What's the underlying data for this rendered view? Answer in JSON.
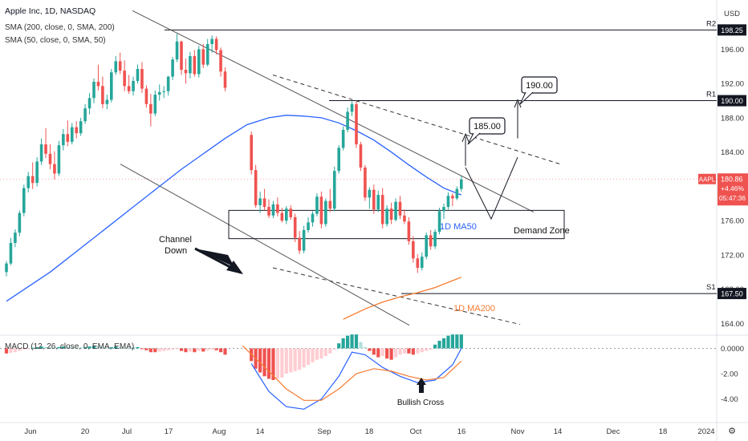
{
  "header": {
    "title": "Apple Inc, 1D, NASDAQ",
    "ind1": "SMA (200, close, 0, SMA, 200)",
    "ind2": "SMA (50, close, 0, SMA, 50)",
    "currency": "USD"
  },
  "chart_data": {
    "type": "candlestick",
    "symbol": "AAPL",
    "price_axis": {
      "range": [
        162.5,
        200.5
      ],
      "ticks": [
        164,
        168,
        172,
        176,
        180,
        184,
        188,
        192,
        196
      ],
      "tick_labels": [
        "164.00",
        "168.00",
        "172.00",
        "176.00",
        "180.00",
        "184.00",
        "188.00",
        "192.00",
        "196.00"
      ]
    },
    "time_axis": {
      "day_range": [
        0,
        140
      ],
      "labels": [
        {
          "day": 3,
          "text": "Jun"
        },
        {
          "day": 19,
          "text": "20"
        },
        {
          "day": 29,
          "text": "Jul"
        },
        {
          "day": 47,
          "text": "17"
        },
        {
          "day": 61,
          "text": "Aug"
        },
        {
          "day": 74,
          "text": "14"
        },
        {
          "day": 92,
          "text": "Sep"
        },
        {
          "day": 106,
          "text": "18"
        },
        {
          "day": 120,
          "text": "Oct"
        },
        {
          "day": 134,
          "text": "16"
        }
      ]
    },
    "candles": [
      [
        0,
        170.0,
        171.3,
        169.5,
        171.0
      ],
      [
        1,
        171.0,
        174.0,
        170.8,
        173.4
      ],
      [
        2,
        173.4,
        175.0,
        172.9,
        174.6
      ],
      [
        3,
        174.6,
        177.2,
        174.2,
        176.9
      ],
      [
        4,
        176.9,
        180.2,
        176.5,
        179.8
      ],
      [
        5,
        179.8,
        181.7,
        179.3,
        181.2
      ],
      [
        6,
        181.2,
        182.8,
        179.7,
        180.4
      ],
      [
        7,
        180.4,
        183.4,
        180.0,
        182.9
      ],
      [
        8,
        182.9,
        185.6,
        182.5,
        184.9
      ],
      [
        9,
        184.9,
        186.8,
        183.3,
        183.8
      ],
      [
        10,
        183.8,
        184.9,
        182.0,
        182.6
      ],
      [
        11,
        182.6,
        184.1,
        180.8,
        181.5
      ],
      [
        12,
        181.5,
        185.3,
        181.2,
        184.8
      ],
      [
        13,
        184.8,
        186.7,
        184.2,
        186.1
      ],
      [
        14,
        186.1,
        187.7,
        184.7,
        185.2
      ],
      [
        15,
        185.2,
        187.4,
        184.9,
        186.9
      ],
      [
        16,
        186.9,
        187.6,
        185.6,
        186.2
      ],
      [
        17,
        186.2,
        188.0,
        185.9,
        187.6
      ],
      [
        18,
        187.6,
        189.6,
        187.3,
        189.1
      ],
      [
        19,
        189.1,
        190.9,
        188.4,
        190.3
      ],
      [
        20,
        190.3,
        192.6,
        189.7,
        192.2
      ],
      [
        21,
        192.2,
        194.2,
        191.2,
        191.7
      ],
      [
        22,
        191.7,
        192.8,
        189.1,
        189.6
      ],
      [
        23,
        189.6,
        190.7,
        189.0,
        190.1
      ],
      [
        24,
        190.1,
        193.7,
        189.8,
        193.3
      ],
      [
        25,
        193.3,
        195.2,
        193.0,
        194.6
      ],
      [
        26,
        194.6,
        195.6,
        193.1,
        193.5
      ],
      [
        27,
        193.5,
        194.7,
        191.1,
        191.7
      ],
      [
        28,
        191.7,
        193.0,
        190.8,
        191.1
      ],
      [
        29,
        191.1,
        192.8,
        190.6,
        192.3
      ],
      [
        30,
        192.3,
        194.2,
        192.0,
        193.7
      ],
      [
        31,
        193.7,
        194.5,
        190.9,
        191.4
      ],
      [
        32,
        191.4,
        191.8,
        189.2,
        189.6
      ],
      [
        33,
        189.6,
        190.8,
        187.0,
        188.5
      ],
      [
        34,
        188.5,
        191.2,
        188.2,
        190.7
      ],
      [
        35,
        190.7,
        191.9,
        190.0,
        191.0
      ],
      [
        36,
        191.0,
        191.7,
        190.3,
        191.1
      ],
      [
        37,
        191.1,
        192.9,
        190.6,
        192.8
      ],
      [
        38,
        192.8,
        195.1,
        192.4,
        194.8
      ],
      [
        39,
        194.8,
        197.8,
        194.5,
        196.9
      ],
      [
        40,
        196.9,
        197.0,
        193.0,
        193.6
      ],
      [
        41,
        193.6,
        194.9,
        192.0,
        193.2
      ],
      [
        42,
        193.2,
        195.7,
        192.6,
        195.2
      ],
      [
        43,
        195.2,
        195.9,
        192.8,
        193.1
      ],
      [
        44,
        193.1,
        196.4,
        192.7,
        196.0
      ],
      [
        45,
        196.0,
        196.6,
        193.8,
        194.2
      ],
      [
        46,
        194.2,
        197.2,
        194.0,
        196.6
      ],
      [
        47,
        196.6,
        197.6,
        195.6,
        197.2
      ],
      [
        48,
        197.2,
        197.5,
        195.4,
        195.9
      ],
      [
        49,
        195.9,
        196.2,
        192.8,
        193.4
      ],
      [
        50,
        193.4,
        193.9,
        191.1,
        191.5
      ],
      [
        56,
        186.0,
        186.4,
        181.4,
        181.9
      ],
      [
        57,
        181.9,
        182.5,
        177.5,
        177.8
      ],
      [
        58,
        177.8,
        179.4,
        176.9,
        178.6
      ],
      [
        59,
        178.6,
        179.7,
        177.2,
        177.6
      ],
      [
        60,
        177.6,
        178.5,
        176.3,
        176.6
      ],
      [
        61,
        176.6,
        178.3,
        176.3,
        177.9
      ],
      [
        62,
        177.9,
        178.7,
        176.5,
        176.9
      ],
      [
        63,
        176.9,
        177.5,
        175.8,
        176.0
      ],
      [
        64,
        176.0,
        177.7,
        175.6,
        177.4
      ],
      [
        65,
        177.4,
        177.8,
        176.1,
        176.4
      ],
      [
        66,
        176.4,
        176.8,
        173.5,
        174.0
      ],
      [
        67,
        174.0,
        174.8,
        172.1,
        172.5
      ],
      [
        68,
        172.5,
        175.4,
        172.2,
        174.9
      ],
      [
        69,
        174.9,
        176.4,
        174.6,
        175.8
      ],
      [
        70,
        175.8,
        177.1,
        175.3,
        176.8
      ],
      [
        71,
        176.8,
        179.2,
        176.5,
        178.8
      ],
      [
        72,
        178.8,
        179.4,
        175.1,
        175.6
      ],
      [
        73,
        175.6,
        178.6,
        175.3,
        178.3
      ],
      [
        74,
        178.3,
        179.7,
        177.0,
        177.4
      ],
      [
        75,
        177.4,
        182.3,
        177.1,
        181.8
      ],
      [
        76,
        181.8,
        184.8,
        181.5,
        184.5
      ],
      [
        77,
        184.5,
        187.0,
        184.2,
        186.6
      ],
      [
        78,
        186.6,
        189.2,
        186.3,
        188.7
      ],
      [
        79,
        188.7,
        189.9,
        188.2,
        189.6
      ],
      [
        80,
        189.6,
        189.9,
        184.5,
        184.9
      ],
      [
        81,
        184.9,
        185.2,
        181.8,
        182.2
      ],
      [
        82,
        182.2,
        182.5,
        178.3,
        178.7
      ],
      [
        83,
        178.7,
        179.9,
        177.4,
        179.6
      ],
      [
        84,
        179.6,
        180.2,
        176.8,
        177.3
      ],
      [
        85,
        177.3,
        179.5,
        177.0,
        179.0
      ],
      [
        86,
        179.0,
        179.8,
        175.1,
        175.6
      ],
      [
        87,
        175.6,
        177.8,
        175.3,
        177.4
      ],
      [
        88,
        177.4,
        178.1,
        175.6,
        176.1
      ],
      [
        89,
        176.1,
        178.6,
        175.9,
        178.2
      ],
      [
        90,
        178.2,
        178.9,
        176.2,
        176.6
      ],
      [
        91,
        176.6,
        177.3,
        175.6,
        175.9
      ],
      [
        92,
        175.9,
        176.4,
        173.2,
        173.6
      ],
      [
        93,
        173.6,
        174.2,
        171.1,
        171.6
      ],
      [
        94,
        171.6,
        172.1,
        169.9,
        170.5
      ],
      [
        95,
        170.5,
        172.3,
        170.2,
        171.8
      ],
      [
        96,
        171.8,
        174.6,
        171.5,
        174.3
      ],
      [
        97,
        174.3,
        174.9,
        172.6,
        173.0
      ],
      [
        98,
        173.0,
        175.0,
        172.7,
        174.7
      ],
      [
        99,
        174.7,
        177.5,
        174.4,
        177.1
      ],
      [
        100,
        177.1,
        178.0,
        176.2,
        177.6
      ],
      [
        101,
        177.6,
        179.3,
        177.3,
        178.9
      ],
      [
        102,
        178.9,
        179.2,
        177.7,
        178.6
      ],
      [
        103,
        178.6,
        180.0,
        178.4,
        179.7
      ],
      [
        104,
        179.7,
        181.2,
        179.4,
        180.8
      ]
    ],
    "sma50": [
      [
        0,
        166.6
      ],
      [
        10,
        170.0
      ],
      [
        20,
        174.0
      ],
      [
        30,
        178.0
      ],
      [
        40,
        182.0
      ],
      [
        50,
        185.6
      ],
      [
        55,
        187.2
      ],
      [
        60,
        188.0
      ],
      [
        64,
        188.3
      ],
      [
        68,
        188.2
      ],
      [
        72,
        188.0
      ],
      [
        76,
        187.4
      ],
      [
        80,
        186.5
      ],
      [
        84,
        185.4
      ],
      [
        88,
        184.0
      ],
      [
        92,
        182.5
      ],
      [
        96,
        181.1
      ],
      [
        100,
        179.8
      ],
      [
        104,
        179.0
      ]
    ],
    "sma200": [
      [
        77,
        164.5
      ],
      [
        82,
        165.7
      ],
      [
        86,
        166.5
      ],
      [
        90,
        167.1
      ],
      [
        94,
        167.6
      ],
      [
        98,
        168.2
      ],
      [
        102,
        169.0
      ],
      [
        104,
        169.4
      ]
    ],
    "macd_axis": {
      "range": [
        -5.0,
        2.0
      ],
      "ticks": [
        0,
        -2,
        -4
      ],
      "tick_labels": [
        "0.0000",
        "-2.00",
        "-4.00"
      ]
    },
    "macd_hist": [
      [
        0,
        -0.4
      ],
      [
        1,
        -0.35
      ],
      [
        2,
        -0.3
      ],
      [
        3,
        -0.2
      ],
      [
        4,
        -0.1
      ],
      [
        5,
        -0.05
      ],
      [
        6,
        0.05
      ],
      [
        7,
        0.1
      ],
      [
        8,
        0.15
      ],
      [
        9,
        0.12
      ],
      [
        10,
        0.1
      ],
      [
        11,
        0.08
      ],
      [
        12,
        0.1
      ],
      [
        13,
        0.15
      ],
      [
        14,
        0.12
      ],
      [
        15,
        0.1
      ],
      [
        16,
        0.08
      ],
      [
        17,
        0.07
      ],
      [
        18,
        0.1
      ],
      [
        19,
        0.15
      ],
      [
        20,
        0.2
      ],
      [
        21,
        0.18
      ],
      [
        22,
        0.1
      ],
      [
        23,
        0.05
      ],
      [
        24,
        0.1
      ],
      [
        25,
        0.15
      ],
      [
        26,
        0.1
      ],
      [
        27,
        0.05
      ],
      [
        28,
        0.0
      ],
      [
        29,
        0.05
      ],
      [
        30,
        0.1
      ],
      [
        31,
        -0.05
      ],
      [
        32,
        -0.15
      ],
      [
        33,
        -0.3
      ],
      [
        34,
        -0.3
      ],
      [
        35,
        -0.25
      ],
      [
        36,
        -0.2
      ],
      [
        37,
        -0.15
      ],
      [
        38,
        -0.1
      ],
      [
        39,
        -0.05
      ],
      [
        40,
        -0.2
      ],
      [
        41,
        -0.3
      ],
      [
        42,
        -0.25
      ],
      [
        43,
        -0.3
      ],
      [
        44,
        -0.2
      ],
      [
        45,
        -0.25
      ],
      [
        46,
        -0.15
      ],
      [
        47,
        -0.1
      ],
      [
        48,
        -0.15
      ],
      [
        49,
        -0.3
      ],
      [
        50,
        -0.5
      ],
      [
        56,
        -1.0
      ],
      [
        57,
        -1.6
      ],
      [
        58,
        -1.9
      ],
      [
        59,
        -2.2
      ],
      [
        60,
        -2.4
      ],
      [
        61,
        -2.5
      ],
      [
        62,
        -2.4
      ],
      [
        63,
        -2.3
      ],
      [
        64,
        -2.0
      ],
      [
        65,
        -1.9
      ],
      [
        66,
        -1.8
      ],
      [
        67,
        -1.7
      ],
      [
        68,
        -1.5
      ],
      [
        69,
        -1.3
      ],
      [
        70,
        -1.1
      ],
      [
        71,
        -0.9
      ],
      [
        72,
        -0.8
      ],
      [
        73,
        -0.6
      ],
      [
        74,
        -0.4
      ],
      [
        75,
        -0.1
      ],
      [
        76,
        0.4
      ],
      [
        77,
        0.8
      ],
      [
        78,
        1.0
      ],
      [
        79,
        1.1
      ],
      [
        80,
        1.1
      ],
      [
        81,
        0.5
      ],
      [
        82,
        0.1
      ],
      [
        83,
        -0.2
      ],
      [
        84,
        -0.5
      ],
      [
        85,
        -0.7
      ],
      [
        86,
        -0.6
      ],
      [
        87,
        -0.8
      ],
      [
        88,
        -0.9
      ],
      [
        89,
        -0.7
      ],
      [
        90,
        -0.5
      ],
      [
        91,
        -0.4
      ],
      [
        92,
        -0.4
      ],
      [
        93,
        -0.5
      ],
      [
        94,
        -0.4
      ],
      [
        95,
        -0.3
      ],
      [
        96,
        -0.2
      ],
      [
        97,
        -0.1
      ],
      [
        98,
        0.3
      ],
      [
        99,
        0.6
      ],
      [
        100,
        0.8
      ],
      [
        101,
        1.0
      ],
      [
        102,
        1.1
      ],
      [
        103,
        1.1
      ],
      [
        104,
        1.1
      ]
    ],
    "macd_line": [
      [
        56,
        -1.2
      ],
      [
        60,
        -3.4
      ],
      [
        64,
        -4.6
      ],
      [
        68,
        -4.8
      ],
      [
        72,
        -4.0
      ],
      [
        76,
        -2.2
      ],
      [
        79,
        -0.3
      ],
      [
        82,
        -0.5
      ],
      [
        86,
        -1.5
      ],
      [
        90,
        -2.2
      ],
      [
        94,
        -2.7
      ],
      [
        98,
        -2.5
      ],
      [
        102,
        -1.3
      ],
      [
        104,
        0.0
      ]
    ],
    "signal_line": [
      [
        54,
        0.2
      ],
      [
        60,
        -1.8
      ],
      [
        64,
        -3.2
      ],
      [
        68,
        -4.1
      ],
      [
        72,
        -4.1
      ],
      [
        76,
        -3.2
      ],
      [
        80,
        -2.0
      ],
      [
        84,
        -1.6
      ],
      [
        88,
        -1.8
      ],
      [
        92,
        -2.2
      ],
      [
        96,
        -2.5
      ],
      [
        100,
        -2.3
      ],
      [
        104,
        -1.0
      ]
    ],
    "price_tags": [
      {
        "label": "R2",
        "value": "198.25"
      },
      {
        "label": "R1",
        "value": "190.00"
      },
      {
        "label": "S1",
        "value": "167.50"
      }
    ],
    "last_price": {
      "symbol": "AAPL",
      "value": "180.86",
      "change": "+4.46%",
      "countdown": "05:47:36"
    },
    "annotations": {
      "target1": "185.00",
      "target2": "190.00",
      "demand_zone": "Demand Zone",
      "ma50_label": "1D MA50",
      "ma200_label": "1D MA200",
      "channel_line1": "Channel",
      "channel_line2": "Down",
      "bullish_cross": "Bullish Cross",
      "macd_legend": "MACD (12, 26, close, 0, EMA, EMA)"
    },
    "bottom_axis": [
      {
        "text": "Jun"
      },
      {
        "text": "20"
      },
      {
        "text": "Jul"
      },
      {
        "text": "17"
      },
      {
        "text": "Aug"
      },
      {
        "text": "14"
      },
      {
        "text": "Sep"
      },
      {
        "text": "18"
      },
      {
        "text": "Oct"
      },
      {
        "text": "16"
      },
      {
        "text": "Nov"
      },
      {
        "text": "14"
      },
      {
        "text": "Dec"
      },
      {
        "text": "18"
      },
      {
        "text": "2024"
      }
    ],
    "colors": {
      "up": "#26a69a",
      "down": "#ef5350",
      "sma50": "#2962ff",
      "sma200": "#f57c32",
      "hist_up_light": "#b2dfdb",
      "hist_down_light": "#ffcdd2"
    }
  }
}
